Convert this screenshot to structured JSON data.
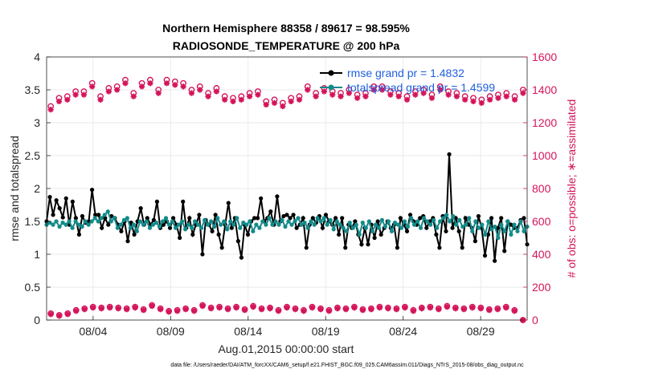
{
  "chart_data": {
    "type": "line",
    "title_line1": "Northern Hemisphere 88358 / 89617 = 98.595%",
    "title_line2": "RADIOSONDE_TEMPERATURE @ 200 hPa",
    "ylabel_left": "rmse and totalspread",
    "ylabel_right": "# of obs: o=possible; ∗=assimilated",
    "xlabel": "Aug.01,2015 00:00:00 start",
    "footnote": "data file: /Users/raeder/DAI/ATM_forcXX/CAM6_setup/f.e21.FHIST_BGC.f09_025.CAM6assim.011/Diags_NTrS_2015-08/obs_diag_output.nc",
    "ylim_left": [
      0,
      4
    ],
    "ylim_right": [
      0,
      1600
    ],
    "yticks_left": [
      "0",
      "0.5",
      "1",
      "1.5",
      "2",
      "2.5",
      "3",
      "3.5",
      "4"
    ],
    "yticks_right": [
      "0",
      "200",
      "400",
      "600",
      "800",
      "1000",
      "1200",
      "1400",
      "1600"
    ],
    "xlim": [
      1,
      32
    ],
    "xticks": [
      {
        "x": 4,
        "label": "08/04"
      },
      {
        "x": 9,
        "label": "08/09"
      },
      {
        "x": 14,
        "label": "08/14"
      },
      {
        "x": 19,
        "label": "08/19"
      },
      {
        "x": 24,
        "label": "08/24"
      },
      {
        "x": 29,
        "label": "08/29"
      }
    ],
    "grid": true,
    "legend_position": "top-right",
    "colors": {
      "rmse": "#000000",
      "spread": "#138a8a",
      "obs": "#d4145a",
      "legend_text": "#1f5fe0"
    },
    "series": [
      {
        "name": "rmse grand pr = 1.4832",
        "color": "#000000",
        "values": [
          1.5,
          1.87,
          1.6,
          1.82,
          1.7,
          1.56,
          1.85,
          1.45,
          1.8,
          1.55,
          1.3,
          1.58,
          1.48,
          1.5,
          1.98,
          1.6,
          1.6,
          1.4,
          1.55,
          1.45,
          1.58,
          1.55,
          1.45,
          1.35,
          1.5,
          1.2,
          1.48,
          1.3,
          1.5,
          1.7,
          1.45,
          1.55,
          1.45,
          1.52,
          1.8,
          1.4,
          1.45,
          1.5,
          1.4,
          1.55,
          1.45,
          1.25,
          1.8,
          1.4,
          1.55,
          1.3,
          1.45,
          1.6,
          1.0,
          1.52,
          1.45,
          1.35,
          1.6,
          1.3,
          1.1,
          1.45,
          1.78,
          1.4,
          1.55,
          1.2,
          0.95,
          1.45,
          1.3,
          1.5,
          1.55,
          1.55,
          1.85,
          1.5,
          1.55,
          1.65,
          1.45,
          1.88,
          1.5,
          1.58,
          1.6,
          1.55,
          1.6,
          1.4,
          1.45,
          1.55,
          1.1,
          1.45,
          1.55,
          1.48,
          1.58,
          1.4,
          1.6,
          1.5,
          1.45,
          1.55,
          1.3,
          1.55,
          1.1,
          1.45,
          1.4,
          1.5,
          1.3,
          1.15,
          1.4,
          1.15,
          1.45,
          1.25,
          1.5,
          1.3,
          1.4,
          1.5,
          1.4,
          1.45,
          1.1,
          1.55,
          1.45,
          1.35,
          1.6,
          1.5,
          1.45,
          1.55,
          1.58,
          1.4,
          1.5,
          1.55,
          1.3,
          1.1,
          1.58,
          1.35,
          2.52,
          1.4,
          1.55,
          1.35,
          1.1,
          1.55,
          1.45,
          1.4,
          1.2,
          1.58,
          1.4,
          0.98,
          1.3,
          1.55,
          0.9,
          1.4,
          1.55,
          1.05,
          1.5,
          1.45,
          1.4,
          1.4,
          1.52,
          1.55,
          1.15
        ]
      },
      {
        "name": "totalspread grand pr = 1.4599",
        "color": "#138a8a",
        "values": [
          1.45,
          1.48,
          1.45,
          1.5,
          1.42,
          1.48,
          1.45,
          1.5,
          1.4,
          1.5,
          1.45,
          1.42,
          1.5,
          1.45,
          1.5,
          1.55,
          1.5,
          1.55,
          1.6,
          1.65,
          1.5,
          1.55,
          1.4,
          1.45,
          1.52,
          1.55,
          1.4,
          1.45,
          1.35,
          1.5,
          1.45,
          1.5,
          1.4,
          1.45,
          1.48,
          1.42,
          1.5,
          1.55,
          1.45,
          1.5,
          1.4,
          1.45,
          1.5,
          1.38,
          1.45,
          1.4,
          1.5,
          1.45,
          1.4,
          1.52,
          1.45,
          1.5,
          1.42,
          1.55,
          1.45,
          1.5,
          1.38,
          1.5,
          1.45,
          1.55,
          1.4,
          1.48,
          1.45,
          1.5,
          1.35,
          1.45,
          1.4,
          1.5,
          1.45,
          1.55,
          1.45,
          1.5,
          1.45,
          1.52,
          1.42,
          1.5,
          1.45,
          1.5,
          1.55,
          1.45,
          1.48,
          1.4,
          1.5,
          1.45,
          1.55,
          1.5,
          1.55,
          1.45,
          1.52,
          1.38,
          1.5,
          1.45,
          1.4,
          1.35,
          1.48,
          1.4,
          1.45,
          1.3,
          1.48,
          1.4,
          1.5,
          1.35,
          1.45,
          1.4,
          1.52,
          1.42,
          1.5,
          1.35,
          1.48,
          1.45,
          1.4,
          1.5,
          1.42,
          1.55,
          1.45,
          1.5,
          1.4,
          1.55,
          1.5,
          1.45,
          1.52,
          1.4,
          1.5,
          1.55,
          1.6,
          1.5,
          1.58,
          1.45,
          1.52,
          1.42,
          1.45,
          1.55,
          1.35,
          1.5,
          1.4,
          1.45,
          1.3,
          1.5,
          1.38,
          1.42,
          1.25,
          1.45,
          1.35,
          1.5,
          1.3,
          1.45,
          1.35,
          1.5,
          1.35,
          1.42
        ]
      }
    ],
    "obs_possible_upper": [
      1300,
      1350,
      1360,
      1390,
      1390,
      1440,
      1360,
      1410,
      1420,
      1460,
      1380,
      1440,
      1460,
      1400,
      1460,
      1450,
      1440,
      1400,
      1420,
      1380,
      1410,
      1360,
      1350,
      1360,
      1380,
      1390,
      1330,
      1340,
      1320,
      1350,
      1360,
      1420,
      1380,
      1410,
      1390,
      1380,
      1400,
      1370,
      1380,
      1420,
      1420,
      1390,
      1380,
      1360,
      1390,
      1400,
      1370,
      1420,
      1390,
      1380,
      1360,
      1350,
      1340,
      1360,
      1370,
      1380,
      1360,
      1400
    ],
    "obs_assim_upper": [
      1280,
      1330,
      1340,
      1370,
      1370,
      1420,
      1340,
      1390,
      1400,
      1440,
      1360,
      1420,
      1440,
      1380,
      1440,
      1430,
      1420,
      1380,
      1400,
      1360,
      1390,
      1340,
      1330,
      1340,
      1360,
      1370,
      1310,
      1320,
      1300,
      1330,
      1340,
      1400,
      1360,
      1390,
      1370,
      1360,
      1380,
      1350,
      1360,
      1400,
      1400,
      1370,
      1360,
      1340,
      1370,
      1380,
      1350,
      1400,
      1370,
      1360,
      1340,
      1330,
      1320,
      1340,
      1350,
      1360,
      1340,
      1380
    ],
    "obs_possible_lower": [
      40,
      30,
      40,
      60,
      70,
      80,
      75,
      80,
      75,
      70,
      80,
      65,
      90,
      70,
      55,
      60,
      70,
      60,
      90,
      75,
      80,
      70,
      80,
      65,
      85,
      70,
      75,
      60,
      80,
      70,
      60,
      80,
      70,
      60,
      75,
      70,
      80,
      65,
      70,
      80,
      75,
      70,
      80,
      60,
      75,
      80,
      70,
      85,
      75,
      70,
      80,
      75,
      65,
      70,
      80,
      60,
      0
    ],
    "obs_assim_lower": [
      35,
      25,
      35,
      55,
      65,
      75,
      70,
      75,
      70,
      65,
      75,
      60,
      85,
      65,
      50,
      55,
      65,
      55,
      85,
      70,
      75,
      65,
      75,
      60,
      80,
      65,
      70,
      55,
      75,
      65,
      55,
      75,
      65,
      55,
      70,
      65,
      75,
      60,
      65,
      75,
      70,
      65,
      75,
      55,
      70,
      75,
      65,
      80,
      70,
      65,
      75,
      70,
      60,
      65,
      75,
      55,
      0
    ]
  }
}
